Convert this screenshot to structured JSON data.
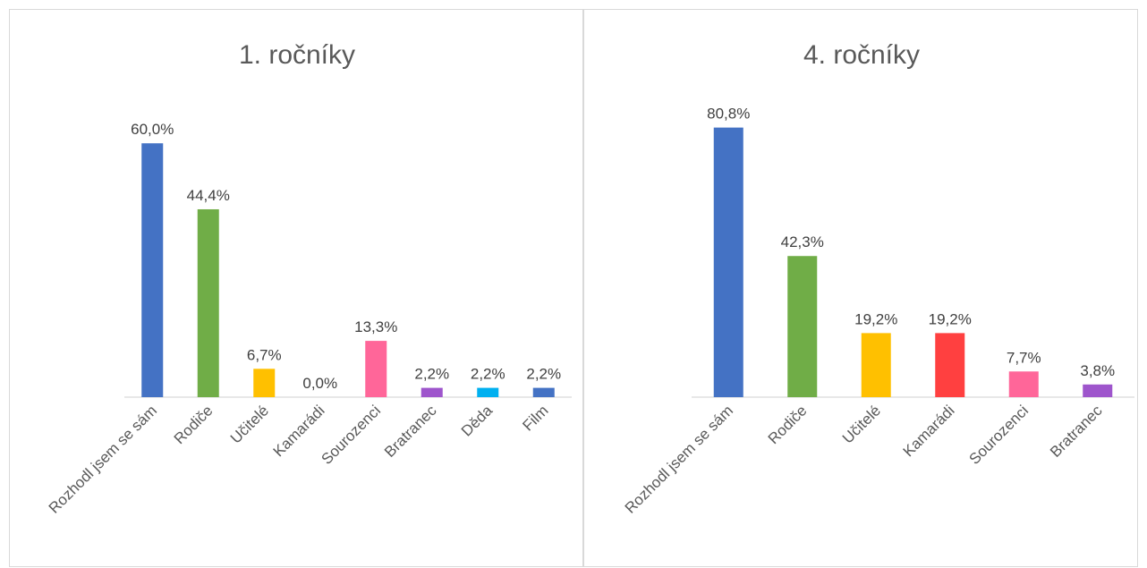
{
  "chart_data": [
    {
      "type": "bar",
      "title": "1. ročníky",
      "xlabel": "",
      "ylabel": "",
      "ylim": [
        0,
        1
      ],
      "grid": false,
      "categories": [
        "Rozhodl jsem se sám",
        "Rodiče",
        "Učitelé",
        "Kamarádi",
        "Sourozenci",
        "Bratranec",
        "Děda",
        "Film"
      ],
      "values": [
        0.6,
        0.444,
        0.067,
        0.0,
        0.133,
        0.022,
        0.022,
        0.022
      ],
      "data_labels": [
        "60,0%",
        "44,4%",
        "6,7%",
        "0,0%",
        "13,3%",
        "2,2%",
        "2,2%",
        "2,2%"
      ],
      "colors": [
        "#4472c4",
        "#70ad47",
        "#ffc000",
        "#ff4040",
        "#ff6699",
        "#9e55cc",
        "#00b0f0",
        "#4472c4"
      ]
    },
    {
      "type": "bar",
      "title": "4. ročníky",
      "xlabel": "",
      "ylabel": "",
      "ylim": [
        0,
        1
      ],
      "grid": false,
      "categories": [
        "Rozhodl jsem se sám",
        "Rodiče",
        "Učitelé",
        "Kamarádi",
        "Sourozenci",
        "Bratranec"
      ],
      "values": [
        0.808,
        0.423,
        0.192,
        0.192,
        0.077,
        0.038
      ],
      "data_labels": [
        "80,8%",
        "42,3%",
        "19,2%",
        "19,2%",
        "7,7%",
        "3,8%"
      ],
      "colors": [
        "#4472c4",
        "#70ad47",
        "#ffc000",
        "#ff4040",
        "#ff6699",
        "#9e55cc"
      ]
    }
  ]
}
